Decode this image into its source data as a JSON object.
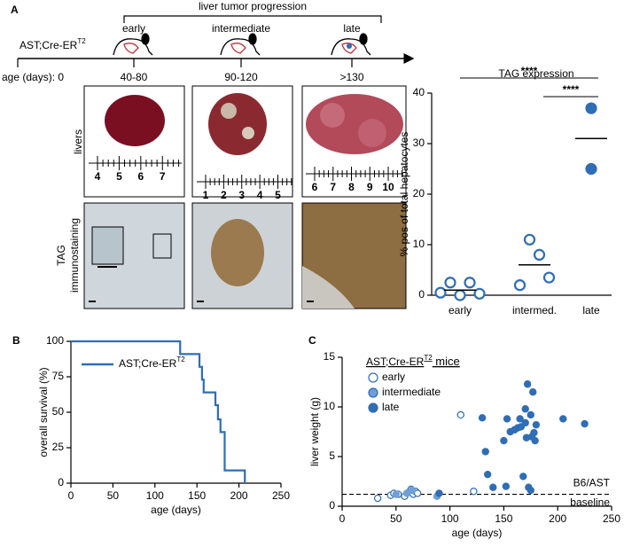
{
  "panel_labels": [
    "A",
    "B",
    "C"
  ],
  "timeline": {
    "title": "liver tumor progression",
    "stages": [
      "early",
      "intermediate",
      "late"
    ],
    "genotype": "AST;Cre-ER",
    "genotype_sup": "T2",
    "age_label": "age (days): 0",
    "ages": [
      "40-80",
      "90-120",
      ">130"
    ]
  },
  "images": {
    "row_labels": [
      "livers",
      "TAG",
      "immunostaining"
    ],
    "ruler_labels": [
      [
        "4",
        "5",
        "6",
        "7"
      ],
      [
        "1",
        "2",
        "3",
        "4",
        "5"
      ],
      [
        "6",
        "7",
        "8",
        "9",
        "10"
      ]
    ]
  },
  "chart_data": [
    {
      "type": "dot",
      "title": "TAG expression",
      "y_label": "% pos of total hepatocytes",
      "categories": [
        "early",
        "intermed.",
        "late"
      ],
      "color": "#2f6db5",
      "filled": [
        false,
        false,
        true
      ],
      "values": [
        [
          0.5,
          2.5,
          0,
          2.5,
          0.3
        ],
        [
          2,
          11,
          8,
          3.5
        ],
        [
          37,
          25
        ]
      ],
      "medians": [
        1,
        6,
        31
      ],
      "ylim": [
        0,
        40
      ],
      "yticks": [
        0,
        10,
        20,
        30,
        40
      ],
      "significance": [
        {
          "label": "****",
          "from": 0,
          "to": 2
        },
        {
          "label": "****",
          "from": 1,
          "to": 2
        }
      ]
    },
    {
      "type": "step",
      "x_label": "age (days)",
      "y_label": "overall survival (%)",
      "xlim": [
        0,
        250
      ],
      "xticks": [
        0,
        50,
        100,
        150,
        200,
        250
      ],
      "ylim": [
        0,
        100
      ],
      "yticks": [
        0,
        25,
        50,
        75,
        100
      ],
      "series": [
        {
          "name": "AST;Cre-ER",
          "name_sup": "T2",
          "color": "#2f6db5",
          "x": [
            0,
            130,
            130,
            153,
            153,
            156,
            156,
            158,
            158,
            172,
            172,
            175,
            175,
            178,
            178,
            183,
            183,
            207,
            207
          ],
          "values": [
            100,
            100,
            91,
            91,
            82,
            82,
            73,
            73,
            64,
            64,
            55,
            55,
            45,
            45,
            36,
            36,
            9,
            9,
            0
          ]
        }
      ]
    },
    {
      "type": "scatter",
      "x_label": "age (days)",
      "y_label": "liver weight (g)",
      "legend_title": "AST;Cre-ER",
      "legend_title_sup": "T2",
      "legend_title_end": " mice",
      "xlim": [
        0,
        250
      ],
      "xticks": [
        0,
        50,
        100,
        150,
        200,
        250
      ],
      "ylim": [
        0,
        15
      ],
      "yticks": [
        0,
        5,
        10,
        15
      ],
      "baseline": {
        "value": 1.2,
        "label": [
          "B6/AST",
          "baseline"
        ]
      },
      "series": [
        {
          "name": "early",
          "color": "#2f6db5",
          "filled": false,
          "x": [
            33,
            45,
            48,
            52,
            58,
            62,
            64,
            66,
            68,
            70,
            110,
            122
          ],
          "values": [
            0.8,
            1.1,
            1.3,
            1.2,
            1.0,
            1.4,
            1.7,
            1.2,
            1.5,
            1.3,
            9.2,
            1.5
          ]
        },
        {
          "name": "intermediate",
          "color": "#6f9fd6",
          "filled": true,
          "x": [
            50,
            60,
            65,
            88
          ],
          "values": [
            1.2,
            1.3,
            1.6,
            1.0
          ]
        },
        {
          "name": "late",
          "color": "#2f6db5",
          "filled": true,
          "x": [
            90,
            130,
            133,
            135,
            140,
            150,
            152,
            153,
            156,
            160,
            163,
            165,
            166,
            168,
            170,
            170,
            171,
            172,
            173,
            175,
            175,
            176,
            177,
            178,
            179,
            180,
            205,
            225
          ],
          "values": [
            1.3,
            8.9,
            5.5,
            3.2,
            1.9,
            6.6,
            2.0,
            8.8,
            7.5,
            7.7,
            7.9,
            8.8,
            8.0,
            3.0,
            8.4,
            9.8,
            6.9,
            12.3,
            1.9,
            1.6,
            9.2,
            7.0,
            11.5,
            7.4,
            6.6,
            8.2,
            8.8,
            8.3
          ]
        }
      ]
    }
  ]
}
